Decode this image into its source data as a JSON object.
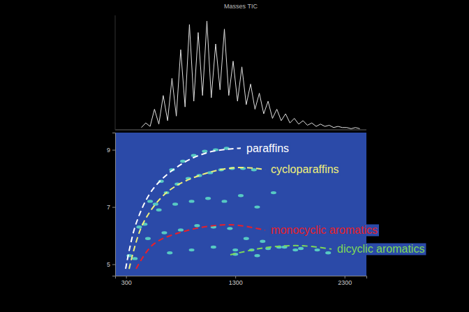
{
  "chart_data": [
    {
      "type": "line",
      "title": "Masses TIC",
      "color": "#e0e0e0",
      "tick_labels": false,
      "xlim": [
        200,
        2500
      ],
      "ylim": [
        0,
        100
      ],
      "x": [
        440,
        480,
        520,
        560,
        600,
        640,
        680,
        720,
        760,
        800,
        840,
        880,
        920,
        960,
        1000,
        1040,
        1080,
        1120,
        1160,
        1200,
        1240,
        1280,
        1320,
        1360,
        1400,
        1440,
        1480,
        1520,
        1560,
        1600,
        1640,
        1680,
        1720,
        1760,
        1800,
        1840,
        1880,
        1920,
        1960,
        2000,
        2040,
        2080,
        2120,
        2160,
        2200,
        2240,
        2280,
        2320,
        2360,
        2400,
        2440
      ],
      "values": [
        2,
        6,
        3,
        18,
        5,
        30,
        8,
        45,
        12,
        70,
        20,
        92,
        25,
        85,
        30,
        95,
        28,
        75,
        35,
        88,
        30,
        60,
        25,
        55,
        22,
        40,
        18,
        32,
        14,
        25,
        10,
        18,
        8,
        14,
        6,
        10,
        5,
        8,
        4,
        6,
        3,
        5,
        3,
        4,
        2,
        3,
        2,
        2,
        1,
        2,
        1
      ]
    },
    {
      "type": "scatter",
      "color": "#5fe0c8",
      "xlim": [
        200,
        2500
      ],
      "xticks": [
        300,
        1300,
        2300
      ],
      "ylim": [
        4.6,
        9.6
      ],
      "yticks": [
        5,
        7,
        9
      ],
      "x": [
        330,
        420,
        520,
        620,
        720,
        820,
        920,
        1020,
        1120,
        1220,
        380,
        470,
        570,
        670,
        770,
        870,
        970,
        1070,
        1170,
        1270,
        1370,
        1470,
        600,
        750,
        900,
        1050,
        1200,
        1350,
        1500,
        1650,
        500,
        650,
        800,
        950,
        1100,
        1250,
        1400,
        1550,
        1700,
        1850,
        700,
        900,
        1100,
        1300,
        1500,
        1300,
        1450,
        1600,
        1750,
        1900,
        2050,
        2150
      ],
      "values": [
        5.3,
        6.3,
        7.2,
        7.9,
        8.3,
        8.6,
        8.8,
        8.95,
        9.0,
        9.05,
        5.2,
        6.4,
        7.1,
        7.5,
        7.8,
        8.0,
        8.1,
        8.2,
        8.3,
        8.35,
        8.35,
        8.3,
        6.9,
        7.1,
        7.2,
        7.3,
        7.2,
        7.4,
        7.0,
        7.5,
        5.9,
        6.1,
        6.2,
        6.35,
        6.3,
        6.25,
        5.9,
        5.8,
        5.6,
        5.5,
        5.4,
        5.5,
        5.6,
        5.5,
        5.3,
        5.35,
        5.5,
        5.55,
        5.6,
        5.55,
        5.5,
        5.4
      ],
      "annotations": [
        {
          "text": "paraffins",
          "color": "#ffffff",
          "line_style": "dashed",
          "x": [
            296,
            392,
            551,
            807,
            1062,
            1350
          ],
          "y": [
            4.84,
            6.43,
            7.65,
            8.5,
            8.92,
            9.06
          ]
        },
        {
          "text": "cycloparaffins",
          "color": "#f0f07a",
          "line_style": "dashed",
          "x": [
            328,
            456,
            679,
            999,
            1318,
            1574
          ],
          "y": [
            4.84,
            6.43,
            7.53,
            8.14,
            8.38,
            8.31
          ]
        },
        {
          "text": "monocyclic aromatics",
          "color": "#e8202a",
          "line_style": "dashed",
          "x": [
            392,
            551,
            871,
            1254,
            1574
          ],
          "y": [
            4.84,
            5.7,
            6.19,
            6.38,
            6.19
          ]
        },
        {
          "text": "dicyclic aromatics",
          "color": "#7ed957",
          "line_style": "dashed",
          "x": [
            1254,
            1574,
            1893,
            2181
          ],
          "y": [
            5.33,
            5.58,
            5.65,
            5.53
          ]
        }
      ]
    }
  ]
}
